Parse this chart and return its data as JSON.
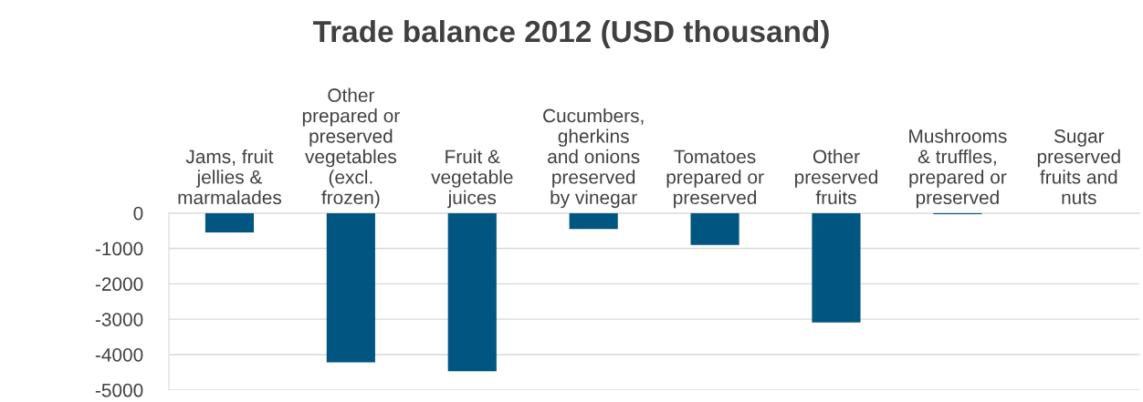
{
  "chart_data": {
    "type": "bar",
    "title": "Trade balance 2012 (USD thousand)",
    "categories": [
      "Jams, fruit\njellies &\nmarmalades",
      "Other\nprepared or\npreserved\nvegetables\n(excl.\nfrozen)",
      "Fruit &\nvegetable\njuices",
      "Cucumbers,\ngherkins\nand onions\npreserved\nby vinegar",
      "Tomatoes\nprepared or\npreserved",
      "Other\npreserved\nfruits",
      "Mushrooms\n& truffles,\nprepared or\npreserved",
      "Sugar\npreserved\nfruits and\nnuts"
    ],
    "values": [
      -550,
      -4220,
      -4470,
      -450,
      -900,
      -3090,
      -30,
      0
    ],
    "color": "#005581",
    "ylim": [
      -5000,
      0
    ],
    "yticks": [
      0,
      -1000,
      -2000,
      -3000,
      -4000,
      -5000
    ],
    "grid": "y"
  }
}
